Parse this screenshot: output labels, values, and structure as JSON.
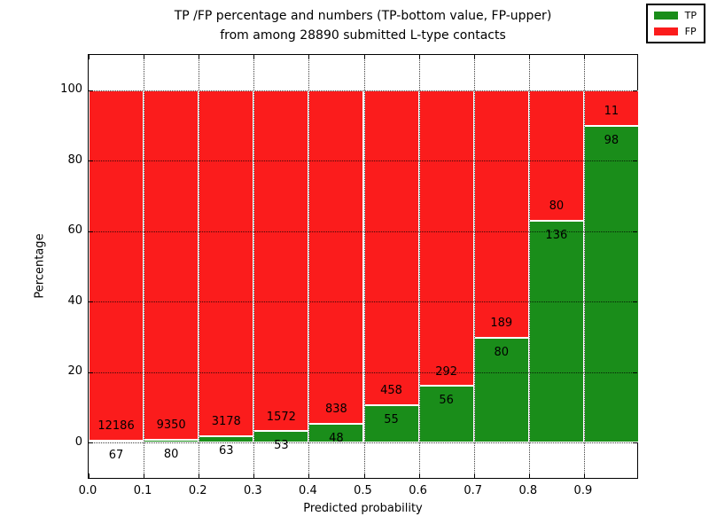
{
  "title": {
    "line1": "TP /FP percentage and numbers (TP-bottom value, FP-upper)",
    "line2": "from among 28890 submitted L-type contacts"
  },
  "axes": {
    "x_label": "Predicted probability",
    "y_label": "Percentage",
    "x_tick_labels": [
      "0.0",
      "0.1",
      "0.2",
      "0.3",
      "0.4",
      "0.5",
      "0.6",
      "0.7",
      "0.8",
      "0.9"
    ],
    "y_tick_labels": [
      "0",
      "20",
      "40",
      "60",
      "80",
      "100"
    ]
  },
  "legend": {
    "entries": [
      {
        "label": "TP",
        "color": "#1a8d1a"
      },
      {
        "label": "FP",
        "color": "#fb1c1c"
      }
    ]
  },
  "colors": {
    "tp_green": "#1a8d1a",
    "fp_red": "#fb1c1c",
    "bar_edge": "#ffffff",
    "grid": "#000000",
    "background": "#ffffff"
  },
  "chart_data": {
    "type": "bar",
    "stacked": true,
    "title": "TP /FP percentage and numbers (TP-bottom value, FP-upper) from among 28890 submitted L-type contacts",
    "xlabel": "Predicted probability",
    "ylabel": "Percentage",
    "xlim": [
      0.0,
      1.0
    ],
    "ylim": [
      -10.5,
      110
    ],
    "x_ticks": [
      0.0,
      0.1,
      0.2,
      0.3,
      0.4,
      0.5,
      0.6,
      0.7,
      0.8,
      0.9
    ],
    "y_ticks": [
      0,
      20,
      40,
      60,
      80,
      100
    ],
    "bin_width": 0.1,
    "total_contacts": 28890,
    "grid": "dotted",
    "legend_position": "upper right",
    "categories": [
      0.0,
      0.1,
      0.2,
      0.3,
      0.4,
      0.5,
      0.6,
      0.7,
      0.8,
      0.9
    ],
    "series": [
      {
        "name": "TP",
        "color": "#1a8d1a",
        "counts": [
          67,
          80,
          63,
          53,
          48,
          55,
          56,
          80,
          136,
          98
        ],
        "pct": [
          0.55,
          0.85,
          1.94,
          3.26,
          5.42,
          10.72,
          16.09,
          29.74,
          62.96,
          89.91
        ]
      },
      {
        "name": "FP",
        "color": "#fb1c1c",
        "counts": [
          12186,
          9350,
          3178,
          1572,
          838,
          458,
          292,
          189,
          80,
          11
        ],
        "pct": [
          99.45,
          99.15,
          98.06,
          96.74,
          94.58,
          89.28,
          83.91,
          70.26,
          37.04,
          10.09
        ]
      }
    ]
  }
}
